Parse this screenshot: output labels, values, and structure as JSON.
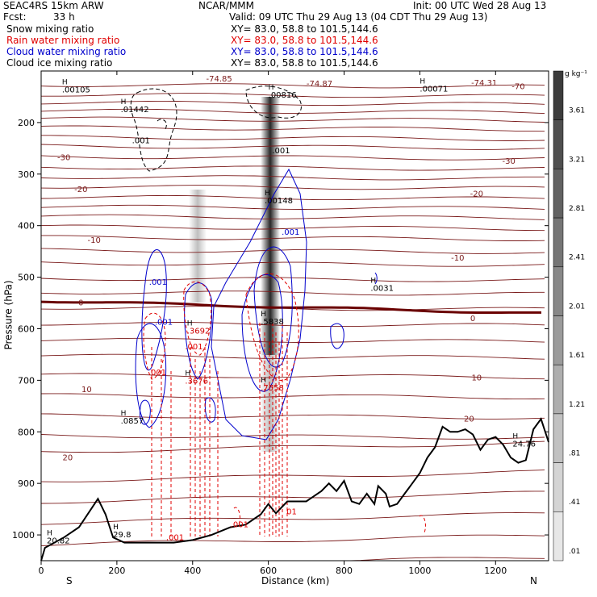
{
  "header": {
    "model": "SEAC4RS 15km ARW",
    "org": "NCAR/MMM",
    "init": "Init: 00 UTC Wed 28 Aug 13",
    "fcst_label": "Fcst:",
    "fcst_value": "33 h",
    "valid": "Valid: 09 UTC Thu 29 Aug 13 (04 CDT Thu 29 Aug 13)"
  },
  "legend": [
    {
      "name": "Snow mixing ratio",
      "xy": "XY=  83.0, 58.8 to 101.5,144.6",
      "color": "#000000"
    },
    {
      "name": "Rain water mixing ratio",
      "xy": "XY=  83.0, 58.8 to 101.5,144.6",
      "color": "#e00000"
    },
    {
      "name": "Cloud water mixing ratio",
      "xy": "XY=  83.0, 58.8 to 101.5,144.6",
      "color": "#0000cc"
    },
    {
      "name": "Cloud ice mixing ratio",
      "xy": "XY=  83.0, 58.8 to 101.5,144.6",
      "color": "#000000"
    }
  ],
  "chart_data": {
    "type": "cross-section",
    "xlabel": "Distance (km)",
    "ylabel": "Pressure (hPa)",
    "xlim": [
      0,
      1340
    ],
    "ylim": [
      1050,
      100
    ],
    "x_ticks": [
      0,
      200,
      400,
      600,
      800,
      1000,
      1200
    ],
    "x_tick_labels": [
      "0",
      "200",
      "400",
      "600",
      "800",
      "1000",
      "1200"
    ],
    "y_ticks": [
      200,
      300,
      400,
      500,
      600,
      700,
      800,
      900,
      1000
    ],
    "y_tick_labels": [
      "200",
      "300",
      "400",
      "500",
      "600",
      "700",
      "800",
      "900",
      "1000"
    ],
    "end_labels": {
      "left": "S",
      "right": "N"
    },
    "colorbar": {
      "unit": "g kg⁻¹",
      "labels": [
        "3.61",
        "3.21",
        "2.81",
        "2.41",
        "2.01",
        "1.61",
        "1.21",
        ".81",
        ".41",
        ".01"
      ]
    },
    "temperature_contour_labels": [
      {
        "text": "-74.85",
        "x": 470,
        "p": 120
      },
      {
        "text": "-74.87",
        "x": 735,
        "p": 130
      },
      {
        "text": "-74.31",
        "x": 1170,
        "p": 128
      },
      {
        "text": "-70",
        "x": 1260,
        "p": 135
      },
      {
        "text": "-30",
        "x": 60,
        "p": 273
      },
      {
        "text": "-30",
        "x": 1235,
        "p": 280
      },
      {
        "text": "-20",
        "x": 105,
        "p": 335
      },
      {
        "text": "-20",
        "x": 1150,
        "p": 343
      },
      {
        "text": "-10",
        "x": 140,
        "p": 433
      },
      {
        "text": "-10",
        "x": 1100,
        "p": 468
      },
      {
        "text": "0",
        "x": 105,
        "p": 555
      },
      {
        "text": "0",
        "x": 1140,
        "p": 585
      },
      {
        "text": "10",
        "x": 120,
        "p": 723
      },
      {
        "text": "10",
        "x": 1150,
        "p": 700
      },
      {
        "text": "20",
        "x": 70,
        "p": 855
      },
      {
        "text": "20",
        "x": 1130,
        "p": 780
      }
    ],
    "max_labels": [
      {
        "text": ".00105",
        "x": 55,
        "p": 140
      },
      {
        "text": ".01442",
        "x": 210,
        "p": 178
      },
      {
        "text": ".00816",
        "x": 600,
        "p": 150
      },
      {
        "text": ".00071",
        "x": 1000,
        "p": 138
      },
      {
        "text": ".00148",
        "x": 590,
        "p": 355
      },
      {
        "text": ".0031",
        "x": 870,
        "p": 525
      },
      {
        "text": ".3692",
        "x": 385,
        "p": 608
      },
      {
        "text": ".5838",
        "x": 580,
        "p": 590
      },
      {
        "text": ".7558",
        "x": 580,
        "p": 718
      },
      {
        "text": ".3676",
        "x": 380,
        "p": 705
      },
      {
        "text": ".0857",
        "x": 210,
        "p": 782
      },
      {
        "text": "24.76",
        "x": 1245,
        "p": 827
      },
      {
        "text": "29.8",
        "x": 190,
        "p": 1003
      },
      {
        "text": "20.82",
        "x": 15,
        "p": 1015
      }
    ],
    "contour_value_labels": [
      {
        "text": ".001",
        "x": 240,
        "p": 240,
        "color": "#000000"
      },
      {
        "text": ".001",
        "x": 610,
        "p": 260,
        "color": "#000000"
      },
      {
        "text": ".001",
        "x": 635,
        "p": 418,
        "color": "#0000cc"
      },
      {
        "text": ".001",
        "x": 285,
        "p": 515,
        "color": "#0000cc"
      },
      {
        "text": ".001",
        "x": 300,
        "p": 592,
        "color": "#0000cc"
      },
      {
        "text": ".001",
        "x": 283,
        "p": 690,
        "color": "#e00000"
      },
      {
        "text": ".001",
        "x": 330,
        "p": 1010,
        "color": "#e00000"
      },
      {
        "text": ".001",
        "x": 500,
        "p": 985,
        "color": "#e00000"
      },
      {
        "text": ".001",
        "x": 380,
        "p": 640,
        "color": "#e00000"
      },
      {
        "text": "01",
        "x": 648,
        "p": 960,
        "color": "#e00000"
      }
    ]
  }
}
